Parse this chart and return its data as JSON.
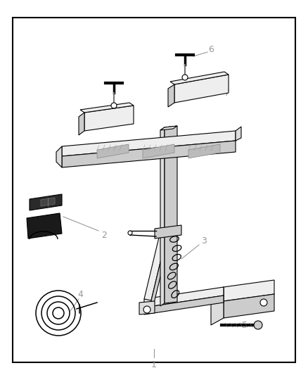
{
  "background_color": "#ffffff",
  "border_color": "#000000",
  "line_color": "#000000",
  "label_color": "#888888",
  "leader_line_color": "#999999",
  "figsize": [
    4.38,
    5.33
  ],
  "dpi": 100
}
